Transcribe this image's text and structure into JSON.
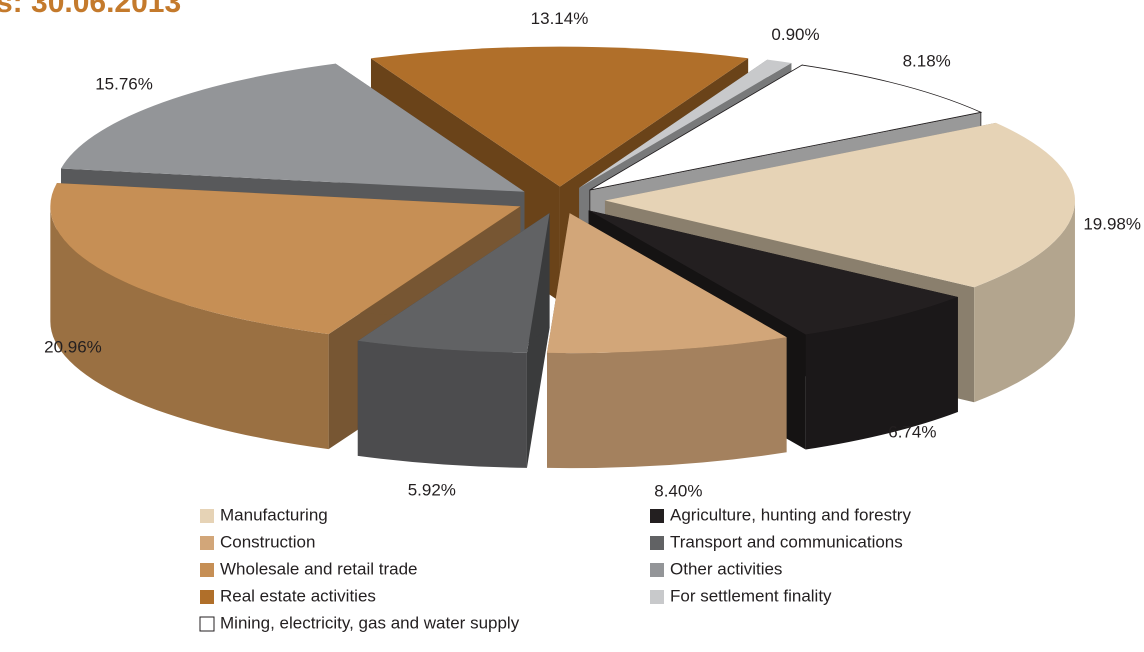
{
  "chart_data": {
    "type": "pie3d",
    "title": "s: 30.06.2013",
    "categories": [
      "Manufacturing",
      "Agriculture, hunting and forestry",
      "Construction",
      "Transport and communications",
      "Wholesale and retail trade",
      "Other activities",
      "Real estate activities",
      "For settlement finality",
      "Mining, electricity, gas and water supply"
    ],
    "values": [
      19.98,
      6.74,
      8.4,
      5.92,
      20.96,
      15.76,
      13.14,
      0.9,
      8.18
    ],
    "value_labels": [
      "19.98%",
      "6.74%",
      "8.40%",
      "5.92%",
      "20.96%",
      "15.76%",
      "13.14%",
      "0.90%",
      "8.18%"
    ],
    "colors": [
      "#e6d3b6",
      "#231f20",
      "#d2a679",
      "#616264",
      "#c68f55",
      "#939598",
      "#b06f2a",
      "#c8c9cb",
      "#ffffff"
    ],
    "legend": "bottom"
  }
}
